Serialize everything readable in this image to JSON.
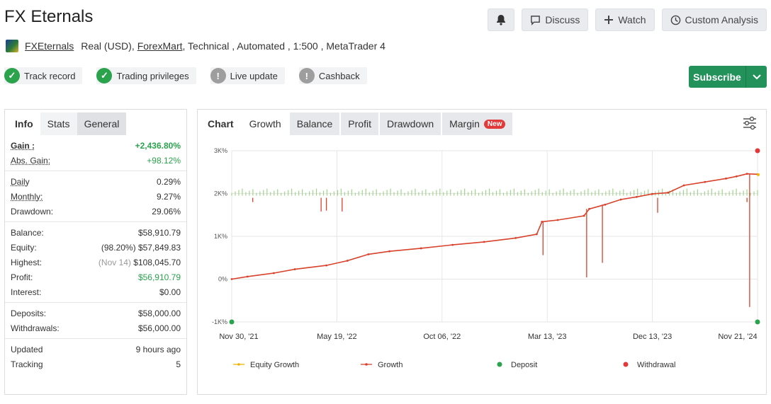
{
  "header": {
    "title": "FX Eternals",
    "buttons": {
      "discuss": "Discuss",
      "watch": "Watch",
      "custom": "Custom Analysis"
    }
  },
  "meta": {
    "account": "FXEternals",
    "type": "Real (USD),",
    "broker": "ForexMart",
    "rest": ", Technical , Automated , 1:500 , MetaTrader 4"
  },
  "badges": [
    {
      "label": "Track record",
      "status": "ok"
    },
    {
      "label": "Trading privileges",
      "status": "ok"
    },
    {
      "label": "Live update",
      "status": "na"
    },
    {
      "label": "Cashback",
      "status": "na"
    }
  ],
  "subscribe": "Subscribe",
  "left_tabs": [
    "Info",
    "Stats",
    "General"
  ],
  "stats": {
    "gain": {
      "k": "Gain :",
      "v": "+2,436.80%"
    },
    "abs_gain": {
      "k": "Abs. Gain:",
      "v": "+98.12%"
    },
    "daily": {
      "k": "Daily",
      "v": "0.29%"
    },
    "monthly": {
      "k": "Monthly:",
      "v": "9.27%"
    },
    "drawdown": {
      "k": "Drawdown:",
      "v": "29.06%"
    },
    "balance": {
      "k": "Balance:",
      "v": "$58,910.79"
    },
    "equity": {
      "k": "Equity:",
      "pre": "(98.20%)",
      "v": "$57,849.83"
    },
    "highest": {
      "k": "Highest:",
      "pre": "(Nov 14)",
      "v": "$108,045.70"
    },
    "profit": {
      "k": "Profit:",
      "v": "$56,910.79"
    },
    "interest": {
      "k": "Interest:",
      "v": "$0.00"
    },
    "deposits": {
      "k": "Deposits:",
      "v": "$58,000.00"
    },
    "withdrawals": {
      "k": "Withdrawals:",
      "v": "$56,000.00"
    },
    "updated": {
      "k": "Updated",
      "v": "9 hours ago"
    },
    "tracking": {
      "k": "Tracking",
      "v": "5"
    }
  },
  "chart_tabs": {
    "chart": "Chart",
    "growth": "Growth",
    "balance": "Balance",
    "profit": "Profit",
    "drawdown": "Drawdown",
    "margin": "Margin",
    "new_badge": "New"
  },
  "chart_data": {
    "type": "line",
    "y_ticks": [
      "3K%",
      "2K%",
      "1K%",
      "0%",
      "-1K%"
    ],
    "ylim": [
      -1000,
      3000
    ],
    "x_ticks": [
      "Nov 30, '21",
      "May 19, '22",
      "Oct 06, '22",
      "Mar 13, '23",
      "Dec 13, '23",
      "Nov 21, '24"
    ],
    "legend": [
      "Equity Growth",
      "Growth",
      "Deposit",
      "Withdrawal"
    ],
    "colors": {
      "growth": "#d9412b",
      "equity": "#f0b400",
      "deposit": "#2ba24c",
      "withdrawal": "#e03a3a",
      "bars": "#9fd58a"
    },
    "series": [
      {
        "name": "Growth",
        "x": [
          0,
          0.03,
          0.08,
          0.12,
          0.18,
          0.22,
          0.26,
          0.3,
          0.36,
          0.42,
          0.48,
          0.54,
          0.58,
          0.59,
          0.62,
          0.67,
          0.68,
          0.71,
          0.74,
          0.77,
          0.8,
          0.83,
          0.86,
          0.9,
          0.94,
          0.96,
          0.98,
          1.0
        ],
        "y": [
          0,
          60,
          140,
          230,
          320,
          430,
          580,
          650,
          720,
          800,
          870,
          960,
          1050,
          1340,
          1380,
          1480,
          1640,
          1740,
          1860,
          1920,
          1990,
          2020,
          2190,
          2270,
          2350,
          2400,
          2460,
          2450
        ]
      }
    ],
    "deposits_at": [
      0,
      1.0
    ],
    "withdrawals_at": [
      1.0
    ]
  }
}
